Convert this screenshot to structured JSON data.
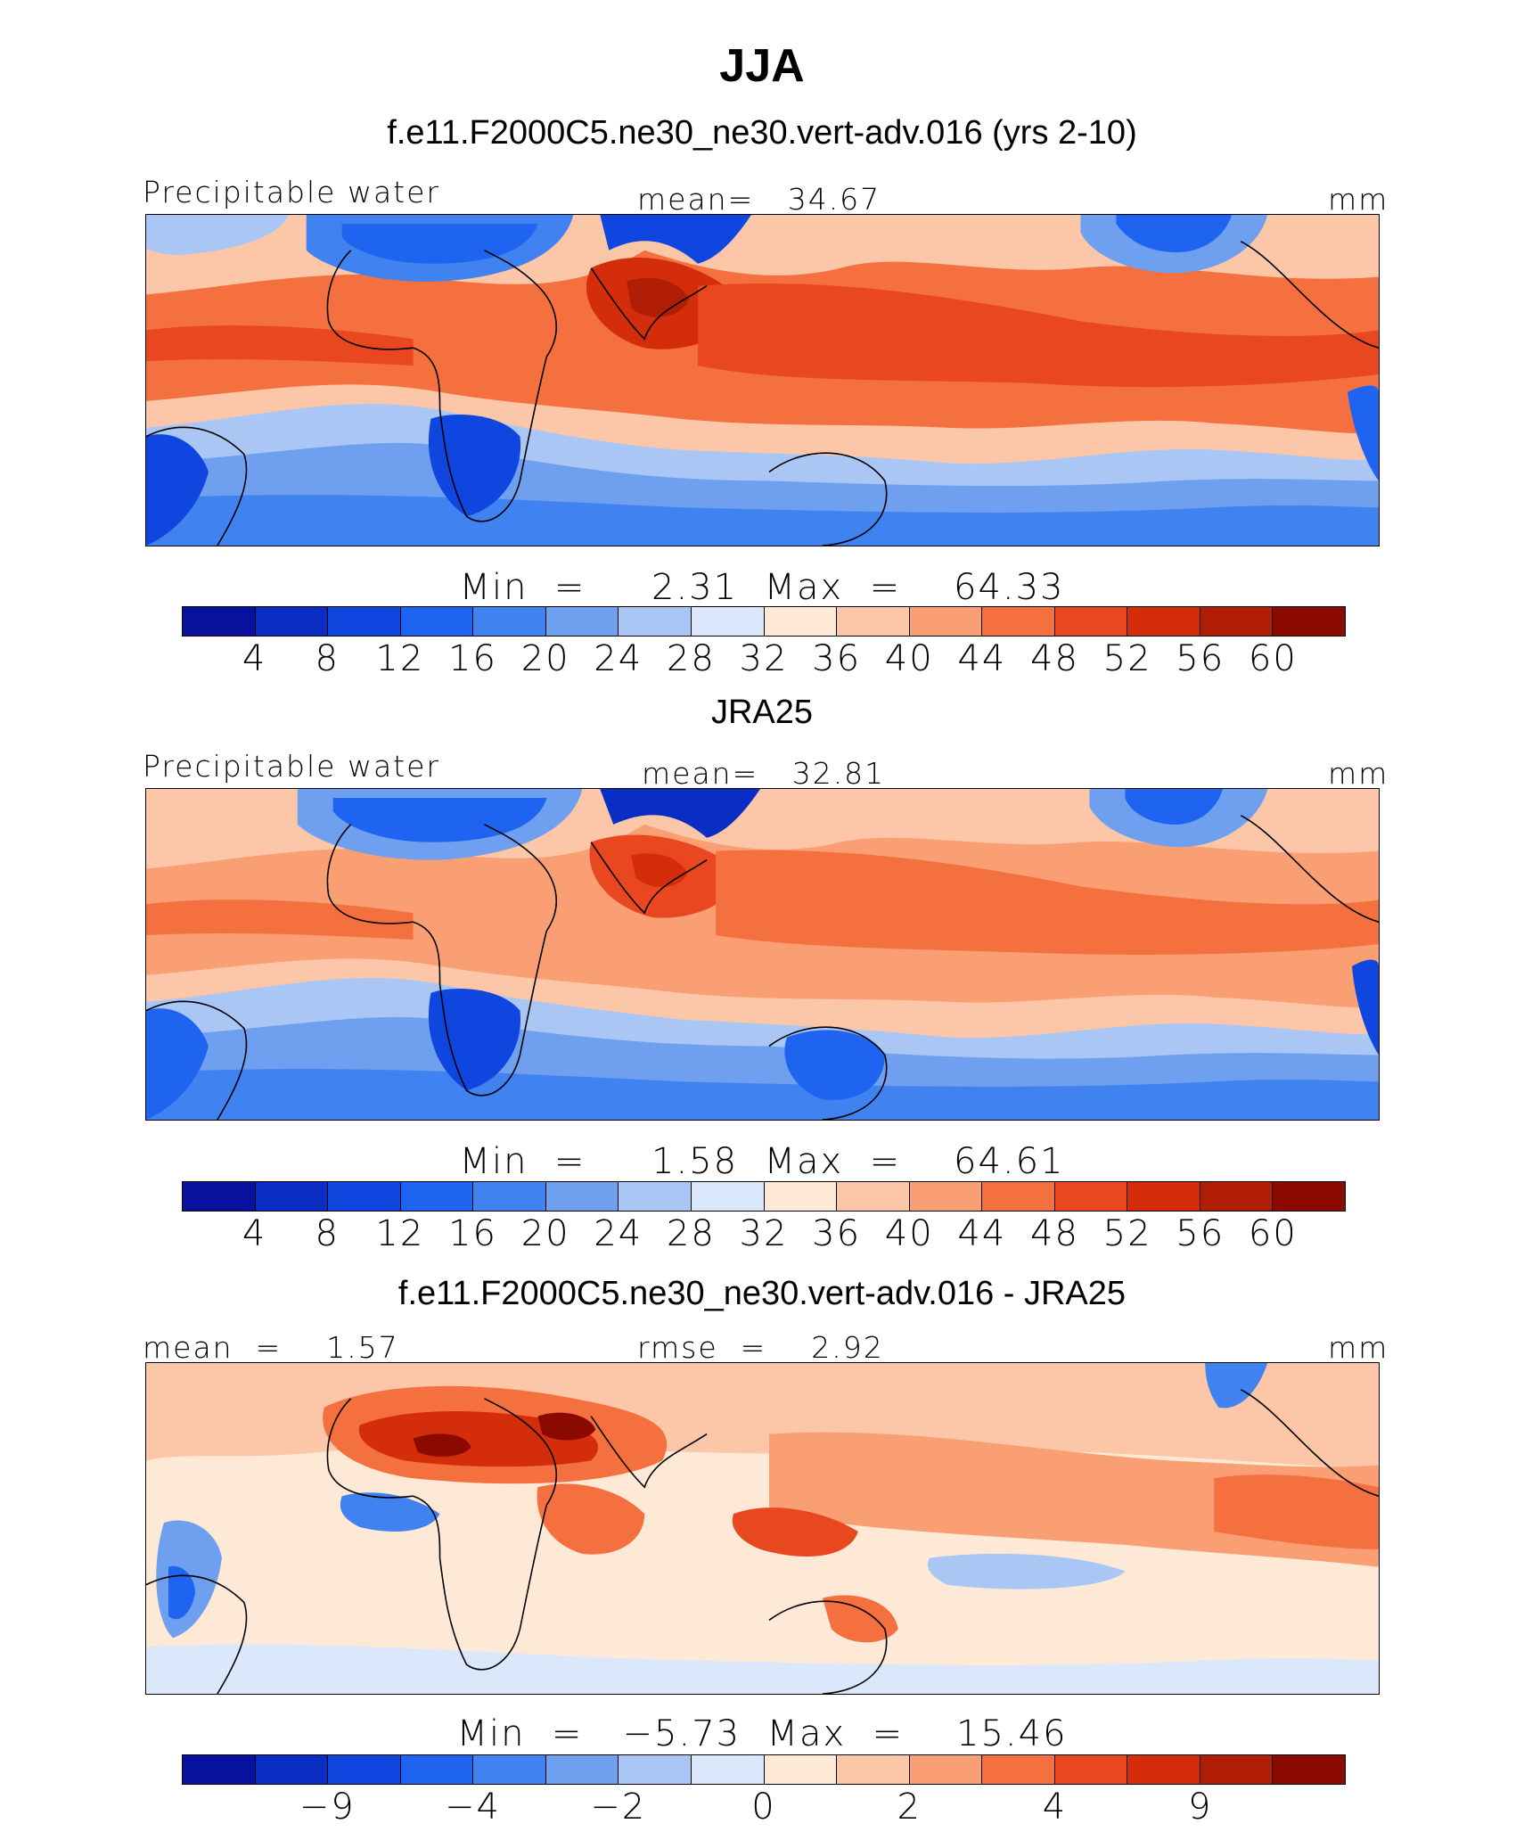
{
  "title": "JJA",
  "colors": [
    "#08109e",
    "#0a2ec4",
    "#0f46e0",
    "#1f64f0",
    "#3f82f0",
    "#6fa0f0",
    "#a9c6f5",
    "#dbe7fb",
    "#fde9d5",
    "#fcc7a8",
    "#fa9f74",
    "#f5703f",
    "#e9471f",
    "#d42d0c",
    "#b01e06",
    "#8a0a00"
  ],
  "panels": [
    {
      "title": "f.e11.F2000C5.ne30_ne30.vert-adv.016 (yrs 2-10)",
      "left_label": "Precipitable water",
      "center_label": "mean=   34.67",
      "right_label": "mm",
      "stats": "Min  =     2.31  Max  =    64.33",
      "ticks": [
        "4",
        "8",
        "12",
        "16",
        "20",
        "24",
        "28",
        "32",
        "36",
        "40",
        "44",
        "48",
        "52",
        "56",
        "60"
      ]
    },
    {
      "title": "JRA25",
      "left_label": "Precipitable water",
      "center_label": "mean=   32.81",
      "right_label": "mm",
      "stats": "Min  =     1.58  Max  =    64.61",
      "ticks": [
        "4",
        "8",
        "12",
        "16",
        "20",
        "24",
        "28",
        "32",
        "36",
        "40",
        "44",
        "48",
        "52",
        "56",
        "60"
      ]
    },
    {
      "title": "f.e11.F2000C5.ne30_ne30.vert-adv.016 - JRA25",
      "left_label": "mean  =    1.57",
      "center_label": "rmse  =    2.92",
      "right_label": "mm",
      "stats": "Min  =   −5.73  Max  =    15.46",
      "ticks": [
        "−9",
        "−4",
        "−2",
        "0",
        "2",
        "4",
        "9"
      ]
    }
  ]
}
